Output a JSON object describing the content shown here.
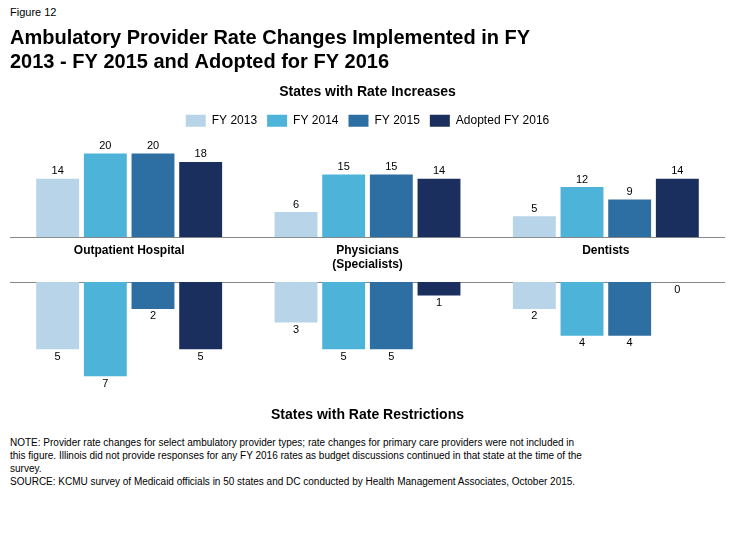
{
  "chart_data": [
    {
      "type": "bar",
      "title": "Ambulatory Provider Rate Changes Implemented in FY\n2013 - FY 2015 and Adopted for FY 2016",
      "subtitle": "States with Rate Increases",
      "annotations": [
        "Figure 12"
      ],
      "categories": [
        "Outpatient Hospital",
        "Physicians\n(Specialists)",
        "Dentists"
      ],
      "series": [
        {
          "name": "FY 2013",
          "color": "#b8d4e8",
          "values": [
            14,
            6,
            5
          ]
        },
        {
          "name": "FY 2014",
          "color": "#4db3d9",
          "values": [
            20,
            15,
            12
          ]
        },
        {
          "name": "FY 2015",
          "color": "#2e6fa3",
          "values": [
            20,
            15,
            9
          ]
        },
        {
          "name": "Adopted FY 2016",
          "color": "#1b2f5e",
          "values": [
            18,
            14,
            14
          ]
        }
      ],
      "ylim": [
        0,
        24
      ],
      "grid": false,
      "legend": "top",
      "data_labels": true,
      "tick_labels": "x"
    },
    {
      "type": "bar",
      "subtitle": "States with Rate Restrictions",
      "annotations": [
        "NOTE: Provider rate changes for select ambulatory provider types; rate changes for primary care providers were not included in\nthis figure. Illinois did not provide responses for any FY 2016 rates as budget discussions continued in that state at the time of the\nsurvey.\nSOURCE: KCMU survey of Medicaid officials in 50 states and DC conducted by Health Management Associates, October 2015."
      ],
      "categories": [
        "Outpatient Hospital",
        "Physicians\n(Specialists)",
        "Dentists"
      ],
      "series": [
        {
          "name": "FY 2013",
          "color": "#b8d4e8",
          "values": [
            5,
            3,
            2
          ]
        },
        {
          "name": "FY 2014",
          "color": "#4db3d9",
          "values": [
            7,
            5,
            4
          ]
        },
        {
          "name": "FY 2015",
          "color": "#2e6fa3",
          "values": [
            2,
            5,
            4
          ]
        },
        {
          "name": "Adopted FY 2016",
          "color": "#1b2f5e",
          "values": [
            5,
            1,
            0
          ]
        }
      ],
      "ylim": [
        9,
        0
      ],
      "grid": false,
      "data_labels": true,
      "tick_labels": false
    }
  ]
}
